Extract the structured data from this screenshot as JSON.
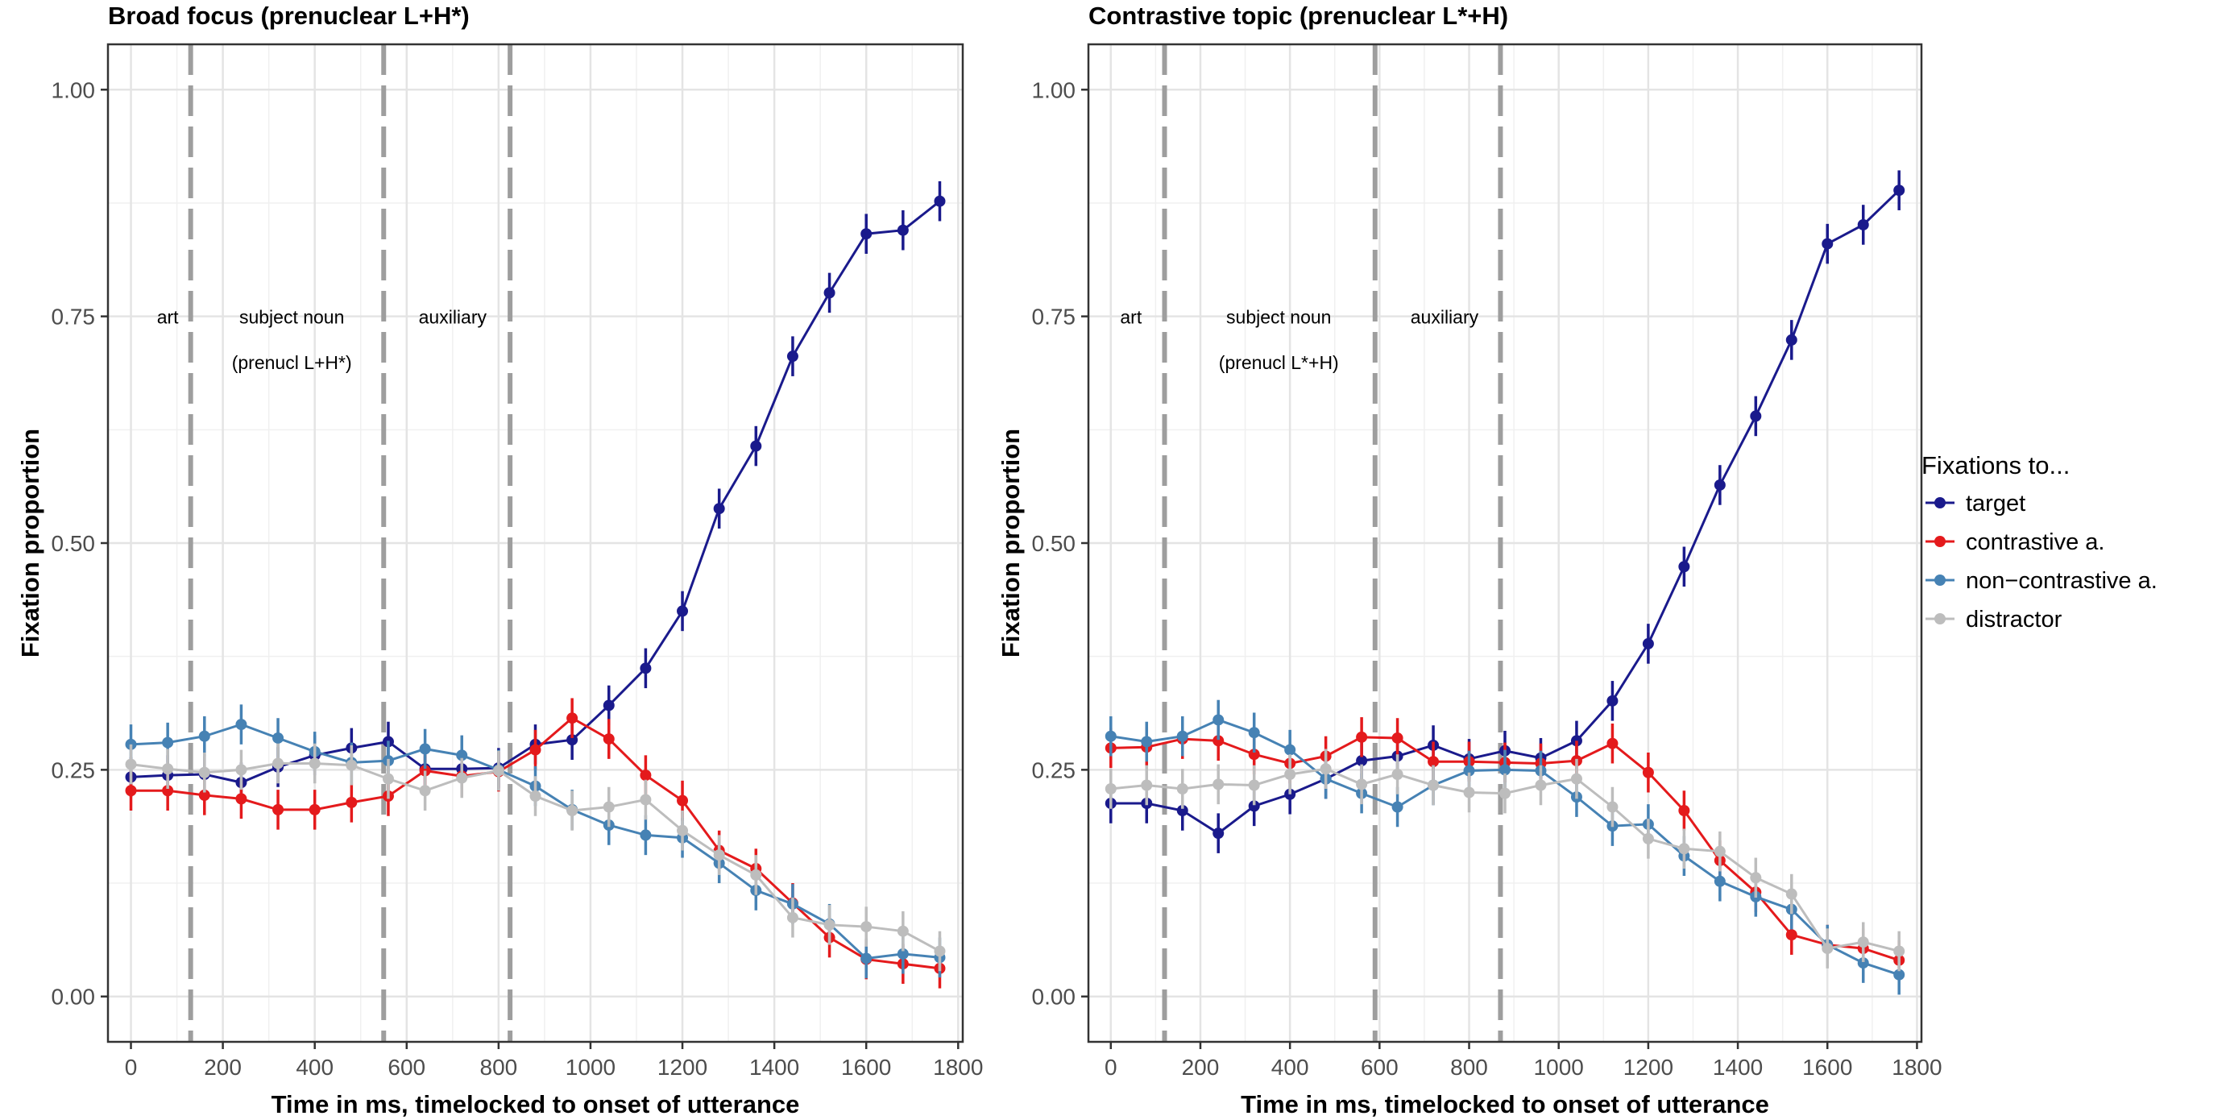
{
  "chart_data": [
    {
      "type": "line",
      "title": "Broad focus (prenuclear L+H*)",
      "xlabel": "Time in ms, timelocked to onset of utterance",
      "ylabel": "Fixation proportion",
      "xlim": [
        -50,
        1810
      ],
      "ylim": [
        -0.05,
        1.05
      ],
      "xticks": [
        0,
        200,
        400,
        600,
        800,
        1000,
        1200,
        1400,
        1600,
        1800
      ],
      "xtick_labels": [
        "0",
        "200",
        "400",
        "600",
        "800",
        "1000",
        "1200",
        "1400",
        "1600",
        "1800"
      ],
      "yticks": [
        0,
        0.25,
        0.5,
        0.75,
        1.0
      ],
      "ytick_labels": [
        "0.00",
        "0.25",
        "0.50",
        "0.75",
        "1.00"
      ],
      "grid": true,
      "boundaries": [
        130,
        550,
        825
      ],
      "annotations": [
        {
          "text": "art",
          "x": 80,
          "y": 0.75
        },
        {
          "text": "subject noun",
          "x": 350,
          "y": 0.75
        },
        {
          "text": "(prenucl L+H*)",
          "x": 350,
          "y": 0.7
        },
        {
          "text": "auxiliary",
          "x": 700,
          "y": 0.75
        }
      ],
      "x": [
        0,
        80,
        160,
        240,
        320,
        400,
        480,
        560,
        640,
        720,
        800,
        880,
        960,
        1040,
        1120,
        1200,
        1280,
        1360,
        1440,
        1520,
        1600,
        1680,
        1760
      ],
      "series": [
        {
          "name": "target",
          "color": "#1a1a8c",
          "values": [
            0.242,
            0.244,
            0.245,
            0.236,
            0.253,
            0.266,
            0.274,
            0.281,
            0.251,
            0.251,
            0.252,
            0.278,
            0.283,
            0.321,
            0.362,
            0.425,
            0.538,
            0.607,
            0.706,
            0.776,
            0.841,
            0.845,
            0.877
          ]
        },
        {
          "name": "contrastive a.",
          "color": "#e41a1c",
          "values": [
            0.227,
            0.227,
            0.222,
            0.218,
            0.206,
            0.206,
            0.214,
            0.221,
            0.249,
            0.243,
            0.248,
            0.272,
            0.307,
            0.284,
            0.244,
            0.216,
            0.161,
            0.141,
            0.103,
            0.065,
            0.041,
            0.036,
            0.031
          ]
        },
        {
          "name": "non-contrastive a.",
          "color": "#4682b4",
          "values": [
            0.278,
            0.28,
            0.287,
            0.3,
            0.285,
            0.27,
            0.258,
            0.26,
            0.273,
            0.266,
            0.25,
            0.232,
            0.206,
            0.189,
            0.178,
            0.175,
            0.147,
            0.117,
            0.102,
            0.08,
            0.042,
            0.047,
            0.043
          ]
        },
        {
          "name": "distractor",
          "color": "#bdbdbd",
          "values": [
            0.256,
            0.251,
            0.247,
            0.25,
            0.257,
            0.257,
            0.255,
            0.24,
            0.227,
            0.241,
            0.249,
            0.221,
            0.205,
            0.209,
            0.217,
            0.183,
            0.156,
            0.134,
            0.087,
            0.079,
            0.077,
            0.072,
            0.05
          ]
        }
      ],
      "error": 0.022
    },
    {
      "type": "line",
      "title": "Contrastive topic (prenuclear L*+H)",
      "xlabel": "Time in ms, timelocked to onset of utterance",
      "ylabel": "Fixation proportion",
      "xlim": [
        -50,
        1810
      ],
      "ylim": [
        -0.05,
        1.05
      ],
      "xticks": [
        0,
        200,
        400,
        600,
        800,
        1000,
        1200,
        1400,
        1600,
        1800
      ],
      "xtick_labels": [
        "0",
        "200",
        "400",
        "600",
        "800",
        "1000",
        "1200",
        "1400",
        "1600",
        "1800"
      ],
      "yticks": [
        0,
        0.25,
        0.5,
        0.75,
        1.0
      ],
      "ytick_labels": [
        "0.00",
        "0.25",
        "0.50",
        "0.75",
        "1.00"
      ],
      "grid": true,
      "boundaries": [
        120,
        590,
        870
      ],
      "annotations": [
        {
          "text": "art",
          "x": 45,
          "y": 0.75
        },
        {
          "text": "subject noun",
          "x": 375,
          "y": 0.75
        },
        {
          "text": "(prenucl L*+H)",
          "x": 375,
          "y": 0.7
        },
        {
          "text": "auxiliary",
          "x": 745,
          "y": 0.75
        }
      ],
      "x": [
        0,
        80,
        160,
        240,
        320,
        400,
        480,
        560,
        640,
        720,
        800,
        880,
        960,
        1040,
        1120,
        1200,
        1280,
        1360,
        1440,
        1520,
        1600,
        1680,
        1760
      ],
      "series": [
        {
          "name": "target",
          "color": "#1a1a8c",
          "values": [
            0.213,
            0.213,
            0.205,
            0.18,
            0.21,
            0.223,
            0.24,
            0.26,
            0.265,
            0.277,
            0.262,
            0.271,
            0.263,
            0.282,
            0.326,
            0.389,
            0.474,
            0.564,
            0.64,
            0.724,
            0.83,
            0.851,
            0.889
          ]
        },
        {
          "name": "contrastive a.",
          "color": "#e41a1c",
          "values": [
            0.274,
            0.275,
            0.284,
            0.282,
            0.267,
            0.257,
            0.265,
            0.286,
            0.285,
            0.259,
            0.259,
            0.258,
            0.257,
            0.26,
            0.279,
            0.247,
            0.205,
            0.15,
            0.115,
            0.068,
            0.057,
            0.053,
            0.04
          ]
        },
        {
          "name": "non-contrastive a.",
          "color": "#4682b4",
          "values": [
            0.287,
            0.281,
            0.287,
            0.305,
            0.291,
            0.272,
            0.24,
            0.224,
            0.209,
            0.233,
            0.249,
            0.25,
            0.249,
            0.22,
            0.188,
            0.19,
            0.155,
            0.127,
            0.11,
            0.096,
            0.057,
            0.037,
            0.024
          ]
        },
        {
          "name": "distractor",
          "color": "#bdbdbd",
          "values": [
            0.229,
            0.233,
            0.229,
            0.234,
            0.233,
            0.245,
            0.251,
            0.234,
            0.245,
            0.233,
            0.225,
            0.224,
            0.233,
            0.24,
            0.209,
            0.174,
            0.163,
            0.16,
            0.131,
            0.113,
            0.053,
            0.06,
            0.05
          ]
        }
      ],
      "error": 0.022
    }
  ],
  "legend": {
    "title": "Fixations to...",
    "items": [
      {
        "name": "target",
        "color": "#1a1a8c"
      },
      {
        "name": "contrastive a.",
        "color": "#e41a1c"
      },
      {
        "name": "non−contrastive a.",
        "color": "#4682b4"
      },
      {
        "name": "distractor",
        "color": "#bdbdbd"
      }
    ]
  }
}
